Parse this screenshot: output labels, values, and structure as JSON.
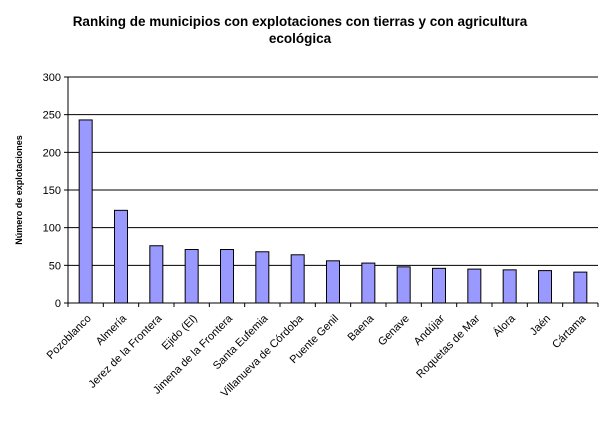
{
  "chart_data": {
    "type": "bar",
    "title": "Ranking de municipios con explotaciones con tierras y con agricultura ecológica",
    "xlabel": "",
    "ylabel": "Número de explotaciones",
    "ylim": [
      0,
      300
    ],
    "yticks": [
      0,
      50,
      100,
      150,
      200,
      250,
      300
    ],
    "grid": true,
    "legend": "none",
    "categories": [
      "Pozoblanco",
      "Almería",
      "Jerez de la Frontera",
      "Ejido (El)",
      "Jimena de la Frontera",
      "Santa Eufemia",
      "Villanueva de Córdoba",
      "Puente Genil",
      "Baena",
      "Genave",
      "Andújar",
      "Roquetas de Mar",
      "Álora",
      "Jaén",
      "Cártama"
    ],
    "values": [
      243,
      123,
      76,
      71,
      71,
      68,
      64,
      56,
      53,
      48,
      46,
      45,
      44,
      43,
      41
    ],
    "bar_color": "#9999ff",
    "bar_edge_color": "#000000"
  }
}
